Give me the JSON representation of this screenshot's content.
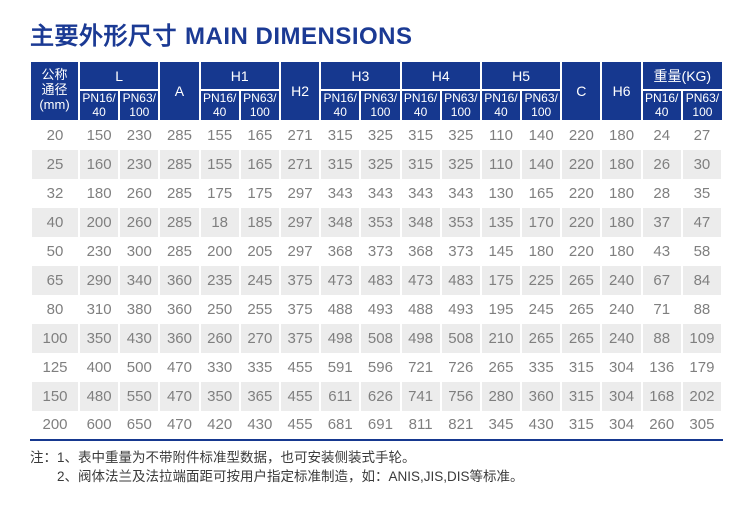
{
  "page": {
    "title_zh": "主要外形尺寸",
    "title_en": "MAIN DIMENSIONS"
  },
  "table": {
    "corner_header": {
      "lines": [
        "公称",
        "通径",
        "(mm)"
      ]
    },
    "pn_sub_labels": {
      "pn16": [
        "PN16/",
        "40"
      ],
      "pn63": [
        "PN63/",
        "100"
      ]
    },
    "groups": [
      {
        "label": "L",
        "has_sub": true
      },
      {
        "label": "A",
        "has_sub": false
      },
      {
        "label": "H1",
        "has_sub": true
      },
      {
        "label": "H2",
        "has_sub": false
      },
      {
        "label": "H3",
        "has_sub": true
      },
      {
        "label": "H4",
        "has_sub": true
      },
      {
        "label": "H5",
        "has_sub": true
      },
      {
        "label": "C",
        "has_sub": false
      },
      {
        "label": "H6",
        "has_sub": false
      },
      {
        "label": "重量(KG)",
        "has_sub": true
      }
    ],
    "rows": [
      [
        20,
        150,
        230,
        285,
        155,
        165,
        271,
        315,
        325,
        315,
        325,
        110,
        140,
        220,
        180,
        24,
        27
      ],
      [
        25,
        160,
        230,
        285,
        155,
        165,
        271,
        315,
        325,
        315,
        325,
        110,
        140,
        220,
        180,
        26,
        30
      ],
      [
        32,
        180,
        260,
        285,
        175,
        175,
        297,
        343,
        343,
        343,
        343,
        130,
        165,
        220,
        180,
        28,
        35
      ],
      [
        40,
        200,
        260,
        285,
        18,
        185,
        297,
        348,
        353,
        348,
        353,
        135,
        170,
        220,
        180,
        37,
        47
      ],
      [
        50,
        230,
        300,
        285,
        200,
        205,
        297,
        368,
        373,
        368,
        373,
        145,
        180,
        220,
        180,
        43,
        58
      ],
      [
        65,
        290,
        340,
        360,
        235,
        245,
        375,
        473,
        483,
        473,
        483,
        175,
        225,
        265,
        240,
        67,
        84
      ],
      [
        80,
        310,
        380,
        360,
        250,
        255,
        375,
        488,
        493,
        488,
        493,
        195,
        245,
        265,
        240,
        71,
        88
      ],
      [
        100,
        350,
        430,
        360,
        260,
        270,
        375,
        498,
        508,
        498,
        508,
        210,
        265,
        265,
        240,
        88,
        109
      ],
      [
        125,
        400,
        500,
        470,
        330,
        335,
        455,
        591,
        596,
        721,
        726,
        265,
        335,
        315,
        304,
        136,
        179
      ],
      [
        150,
        480,
        550,
        470,
        350,
        365,
        455,
        611,
        626,
        741,
        756,
        280,
        360,
        315,
        304,
        168,
        202
      ],
      [
        200,
        600,
        650,
        470,
        420,
        430,
        455,
        681,
        691,
        811,
        821,
        345,
        430,
        315,
        304,
        260,
        305
      ]
    ]
  },
  "notes": {
    "prefix": "注：",
    "items": [
      "1、表中重量为不带附件标准型数据，也可安装侧装式手轮。",
      "2、阀体法兰及法拉端面距可按用户指定标准制造，如：ANIS,JIS,DIS等标准。"
    ]
  },
  "colors": {
    "title_text": "#1b3a94",
    "header_bg": "#16388f",
    "header_text": "#ffffff",
    "row_stripe": "#ececec",
    "cell_text": "#7f7f7f",
    "note_text": "#3a3a3a",
    "table_bottom_line": "#16388f"
  }
}
